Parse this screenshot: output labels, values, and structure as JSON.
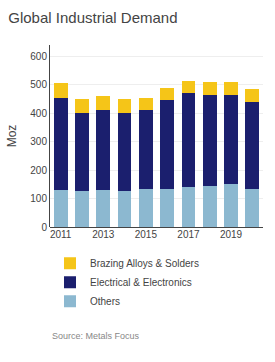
{
  "chart_data": {
    "type": "bar",
    "title": "Global Industrial Demand",
    "ylabel": "Moz",
    "annotations": [
      "Source: Metals Focus"
    ],
    "categories": [
      "2011",
      null,
      "2013",
      null,
      "2015",
      null,
      "2017",
      null,
      "2019",
      null
    ],
    "series": [
      {
        "name": "Others",
        "color": "#8cb8d0",
        "values": [
          130,
          125,
          130,
          125,
          135,
          135,
          140,
          145,
          150,
          135
        ]
      },
      {
        "name": "Electrical & Electronics",
        "color": "#1b1f6e",
        "values": [
          325,
          275,
          280,
          275,
          275,
          310,
          330,
          320,
          315,
          305
        ]
      },
      {
        "name": "Brazing Alloys & Solders",
        "color": "#f5c518",
        "values": [
          50,
          50,
          50,
          50,
          45,
          45,
          45,
          45,
          45,
          45
        ]
      }
    ],
    "stacked": true,
    "ylim": [
      0,
      640
    ],
    "yticks": [
      0,
      100,
      200,
      300,
      400,
      500,
      600
    ],
    "grid": true,
    "legend": "lower left"
  }
}
